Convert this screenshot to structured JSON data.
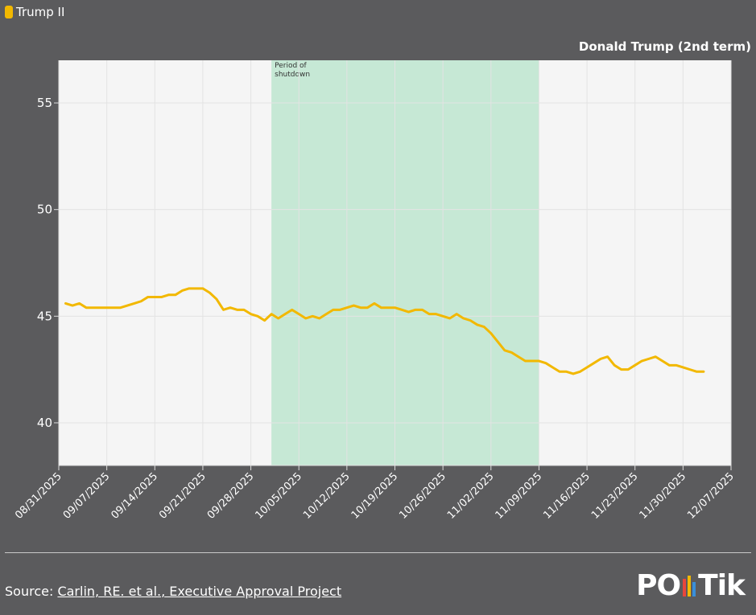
{
  "chart_data": {
    "type": "line",
    "legend_label": "Trump II",
    "title": "Donald Trump (2nd term)",
    "annotation": {
      "text": "Period of shutdown",
      "start": "10/01/2025",
      "end": "11/09/2025",
      "color": "#c6e8d5"
    },
    "x": [
      "09/01/2025",
      "09/02/2025",
      "09/03/2025",
      "09/04/2025",
      "09/05/2025",
      "09/06/2025",
      "09/07/2025",
      "09/08/2025",
      "09/09/2025",
      "09/10/2025",
      "09/11/2025",
      "09/12/2025",
      "09/13/2025",
      "09/14/2025",
      "09/15/2025",
      "09/16/2025",
      "09/17/2025",
      "09/18/2025",
      "09/19/2025",
      "09/20/2025",
      "09/21/2025",
      "09/22/2025",
      "09/23/2025",
      "09/24/2025",
      "09/25/2025",
      "09/26/2025",
      "09/27/2025",
      "09/28/2025",
      "09/29/2025",
      "09/30/2025",
      "10/01/2025",
      "10/02/2025",
      "10/03/2025",
      "10/04/2025",
      "10/05/2025",
      "10/06/2025",
      "10/07/2025",
      "10/08/2025",
      "10/09/2025",
      "10/10/2025",
      "10/11/2025",
      "10/12/2025",
      "10/13/2025",
      "10/14/2025",
      "10/15/2025",
      "10/16/2025",
      "10/17/2025",
      "10/18/2025",
      "10/19/2025",
      "10/20/2025",
      "10/21/2025",
      "10/22/2025",
      "10/23/2025",
      "10/24/2025",
      "10/25/2025",
      "10/26/2025",
      "10/27/2025",
      "10/28/2025",
      "10/29/2025",
      "10/30/2025",
      "10/31/2025",
      "11/01/2025",
      "11/02/2025",
      "11/03/2025",
      "11/04/2025",
      "11/05/2025",
      "11/06/2025",
      "11/07/2025",
      "11/08/2025",
      "11/09/2025",
      "11/10/2025",
      "11/11/2025",
      "11/12/2025",
      "11/13/2025",
      "11/14/2025",
      "11/15/2025",
      "11/16/2025",
      "11/17/2025",
      "11/18/2025",
      "11/19/2025",
      "11/20/2025",
      "11/21/2025",
      "11/22/2025",
      "11/23/2025",
      "11/24/2025",
      "11/25/2025",
      "11/26/2025",
      "11/27/2025",
      "11/28/2025",
      "11/29/2025",
      "11/30/2025",
      "12/01/2025",
      "12/02/2025",
      "12/03/2025"
    ],
    "series": [
      {
        "name": "Trump II",
        "color": "#f2b800",
        "values": [
          45.6,
          45.5,
          45.6,
          45.4,
          45.4,
          45.4,
          45.4,
          45.4,
          45.4,
          45.5,
          45.6,
          45.7,
          45.9,
          45.9,
          45.9,
          46.0,
          46.0,
          46.2,
          46.3,
          46.3,
          46.3,
          46.1,
          45.8,
          45.3,
          45.4,
          45.3,
          45.3,
          45.1,
          45.0,
          44.8,
          45.1,
          44.9,
          45.1,
          45.3,
          45.1,
          44.9,
          45.0,
          44.9,
          45.1,
          45.3,
          45.3,
          45.4,
          45.5,
          45.4,
          45.4,
          45.6,
          45.4,
          45.4,
          45.4,
          45.3,
          45.2,
          45.3,
          45.3,
          45.1,
          45.1,
          45.0,
          44.9,
          45.1,
          44.9,
          44.8,
          44.6,
          44.5,
          44.2,
          43.8,
          43.4,
          43.3,
          43.1,
          42.9,
          42.9,
          42.9,
          42.8,
          42.6,
          42.4,
          42.4,
          42.3,
          42.4,
          42.6,
          42.8,
          43.0,
          43.1,
          42.7,
          42.5,
          42.5,
          42.7,
          42.9,
          43.0,
          43.1,
          42.9,
          42.7,
          42.7,
          42.6,
          42.5,
          42.4,
          42.4
        ]
      }
    ],
    "xlim": [
      "08/31/2025",
      "12/07/2025"
    ],
    "xticks": [
      "08/31/2025",
      "09/07/2025",
      "09/14/2025",
      "09/21/2025",
      "09/28/2025",
      "10/05/2025",
      "10/12/2025",
      "10/19/2025",
      "10/26/2025",
      "11/02/2025",
      "11/09/2025",
      "11/16/2025",
      "11/23/2025",
      "11/30/2025",
      "12/07/2025"
    ],
    "ylim": [
      38,
      57
    ],
    "yticks": [
      40,
      45,
      50,
      55
    ],
    "grid": true
  },
  "footer": {
    "source_label": "Source:",
    "source_link": "Carlin, RE. et al., Executive Approval Project",
    "logo_left": "PO",
    "logo_right": "Tik"
  }
}
